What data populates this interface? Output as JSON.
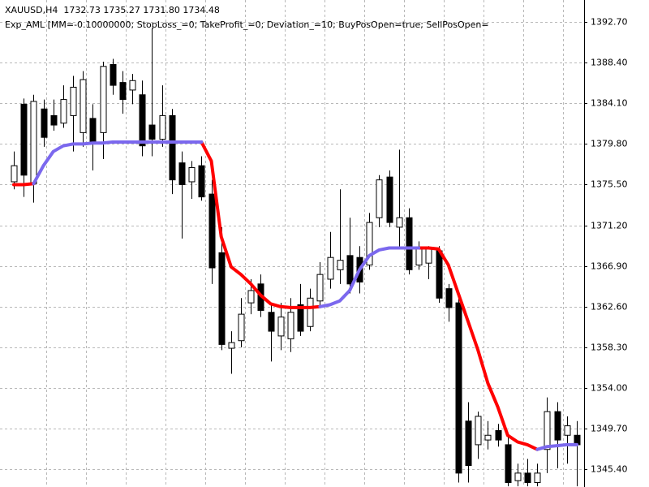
{
  "chart_data": {
    "type": "candlestick",
    "title": "XAUUSD,H4  1732.73 1735.27 1731.80 1734.48",
    "subtitle": "Exp_AML [MM=-0.10000000; StopLoss_=0; TakeProfit_=0; Deviation_=10; BuyPosOpen=true; SellPosOpen=",
    "open": [
      1375.8,
      1384.0,
      1375.6,
      1383.5,
      1382.8,
      1382.0,
      1382.8,
      1381.0,
      1382.5,
      1381.0,
      1388.2,
      1386.3,
      1385.5,
      1385.0,
      1381.8,
      1380.3,
      1382.8,
      1377.8,
      1375.8,
      1377.5,
      1374.5,
      1368.3,
      1358.2,
      1359.0,
      1363.0,
      1365.0,
      1362.0,
      1359.5,
      1359.2,
      1362.8,
      1360.5,
      1363.2,
      1365.5,
      1366.5,
      1368.0,
      1367.8,
      1367.0,
      1372.0,
      1376.3,
      1371.0,
      1372.0,
      1367.0,
      1367.2,
      1368.5,
      1364.5,
      1363.0,
      1350.5,
      1348.0,
      1348.5,
      1349.5,
      1348.0,
      1344.2,
      1345.0,
      1344.0,
      1347.5,
      1351.5,
      1349.0,
      1349.0
    ],
    "high": [
      1379.0,
      1384.6,
      1385.0,
      1384.5,
      1384.5,
      1386.0,
      1387.0,
      1387.5,
      1384.0,
      1388.5,
      1388.8,
      1387.5,
      1387.2,
      1386.5,
      1392.0,
      1386.0,
      1383.5,
      1379.0,
      1378.0,
      1378.5,
      1376.0,
      1371.0,
      1360.0,
      1363.5,
      1365.5,
      1366.0,
      1362.8,
      1363.0,
      1363.5,
      1365.0,
      1364.5,
      1367.3,
      1370.5,
      1375.0,
      1372.0,
      1369.0,
      1372.5,
      1376.5,
      1377.0,
      1379.2,
      1373.0,
      1369.5,
      1369.0,
      1369.0,
      1365.0,
      1363.5,
      1352.5,
      1351.5,
      1350.5,
      1350.2,
      1349.0,
      1346.0,
      1346.5,
      1346.0,
      1353.0,
      1352.5,
      1351.0,
      1350.5
    ],
    "low": [
      1375.0,
      1374.2,
      1373.6,
      1379.5,
      1381.2,
      1381.5,
      1379.0,
      1379.5,
      1377.0,
      1378.2,
      1385.0,
      1383.0,
      1384.0,
      1378.5,
      1378.5,
      1379.5,
      1374.5,
      1369.8,
      1374.0,
      1373.8,
      1365.0,
      1358.0,
      1355.5,
      1358.3,
      1361.8,
      1361.5,
      1356.8,
      1358.0,
      1357.8,
      1359.5,
      1360.0,
      1362.5,
      1364.5,
      1365.0,
      1364.0,
      1364.0,
      1366.5,
      1371.0,
      1371.0,
      1368.8,
      1366.0,
      1366.5,
      1365.5,
      1363.0,
      1361.0,
      1344.0,
      1344.0,
      1346.5,
      1347.5,
      1347.8,
      1343.6,
      1343.6,
      1343.6,
      1343.6,
      1345.0,
      1345.5,
      1346.0,
      1343.6
    ],
    "close": [
      1377.5,
      1376.5,
      1384.3,
      1380.5,
      1381.8,
      1384.5,
      1385.8,
      1386.6,
      1380.0,
      1388.0,
      1386.0,
      1384.5,
      1386.5,
      1379.6,
      1380.3,
      1382.8,
      1376.0,
      1375.5,
      1377.3,
      1374.2,
      1366.7,
      1358.6,
      1358.8,
      1361.8,
      1364.3,
      1362.2,
      1360.0,
      1361.5,
      1362.0,
      1360.0,
      1363.5,
      1366.0,
      1367.8,
      1367.5,
      1365.0,
      1365.2,
      1371.5,
      1376.0,
      1371.5,
      1372.0,
      1366.5,
      1368.8,
      1368.7,
      1363.5,
      1362.5,
      1345.0,
      1345.8,
      1351.0,
      1349.0,
      1348.5,
      1344.0,
      1345.0,
      1344.0,
      1345.0,
      1351.5,
      1348.5,
      1350.0,
      1348.0
    ],
    "lines": [
      {
        "color": "#ff0000",
        "values": [
          1375.5,
          1375.5,
          1375.6,
          null,
          null,
          null,
          null,
          null,
          null,
          null,
          null,
          null,
          null,
          null,
          null,
          null,
          null,
          null,
          null,
          1380.0,
          1378.0,
          1370.0,
          1366.8,
          1366.0,
          1365.0,
          1363.8,
          1362.9,
          1362.6,
          1362.5,
          1362.5,
          1362.5,
          1362.6,
          null,
          null,
          null,
          null,
          null,
          null,
          null,
          null,
          null,
          1368.8,
          1368.8,
          1368.7,
          1367.0,
          1364.0,
          1361.0,
          1358.0,
          1354.5,
          1352.0,
          1349.0,
          1348.3,
          1348.0,
          1347.5,
          null,
          null,
          null,
          null
        ]
      },
      {
        "color": "#7b68ee",
        "values": [
          null,
          null,
          1375.6,
          1377.5,
          1379.0,
          1379.6,
          1379.8,
          1379.8,
          1379.9,
          1379.9,
          1380.0,
          1380.0,
          1380.0,
          1380.0,
          1380.0,
          1380.0,
          1380.0,
          1380.0,
          1380.0,
          1380.0,
          null,
          null,
          null,
          null,
          null,
          null,
          null,
          null,
          null,
          null,
          null,
          1362.6,
          1362.8,
          1363.2,
          1364.3,
          1366.5,
          1368.0,
          1368.6,
          1368.8,
          1368.8,
          1368.8,
          1368.8,
          null,
          null,
          null,
          null,
          null,
          null,
          null,
          null,
          null,
          null,
          null,
          1347.5,
          1347.8,
          1347.9,
          1348.0,
          1348.0
        ]
      }
    ],
    "ylim": [
      1343.53,
      1395.02
    ],
    "yticks": [
      {
        "value": 1392.7,
        "label": "1392.70"
      },
      {
        "value": 1388.4,
        "label": "1388.40"
      },
      {
        "value": 1384.1,
        "label": "1384.10"
      },
      {
        "value": 1379.8,
        "label": "1379.80"
      },
      {
        "value": 1375.5,
        "label": "1375.50"
      },
      {
        "value": 1371.2,
        "label": "1371.20"
      },
      {
        "value": 1366.9,
        "label": "1366.90"
      },
      {
        "value": 1362.6,
        "label": "1362.60"
      },
      {
        "value": 1358.3,
        "label": "1358.30"
      },
      {
        "value": 1354.0,
        "label": "1354.00"
      },
      {
        "value": 1349.7,
        "label": "1349.70"
      },
      {
        "value": 1345.4,
        "label": "1345.40"
      }
    ],
    "grid": true,
    "bull_color": "#ffffff",
    "bear_color": "#000000"
  }
}
